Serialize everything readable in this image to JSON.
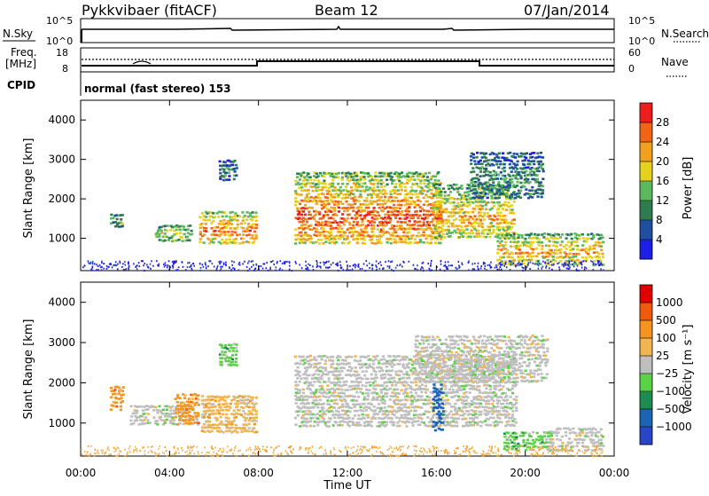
{
  "header": {
    "station": "Pykkvibaer (fitACF)",
    "beam": "Beam 12",
    "date": "07/Jan/2014"
  },
  "nsky_panel": {
    "left_label": "N.Sky",
    "right_label": "N.Search",
    "left_ticks": [
      "10^5",
      "10^0"
    ],
    "right_ticks": [
      "10^5",
      "10^0"
    ]
  },
  "freq_panel": {
    "left_label_line1": "Freq.",
    "left_label_line2": "[MHz]",
    "right_label": "Nave",
    "left_ticks": [
      "18",
      "8"
    ],
    "right_ticks": [
      "60",
      "0"
    ],
    "cpid_label": "CPID",
    "cpid_text": "normal (fast stereo) 153"
  },
  "colors": {
    "power": [
      "#1e1ee6",
      "#1f4f9e",
      "#2e7d4f",
      "#5cb85c",
      "#e6d21e",
      "#f0a01e",
      "#f06414",
      "#ee1e1e"
    ],
    "velocity": [
      "#e00000",
      "#f05a0a",
      "#f5941e",
      "#f0b450",
      "#bebebe",
      "#5ad246",
      "#1e8c50",
      "#1e64b4",
      "#2846c8"
    ]
  },
  "chart_data": [
    {
      "type": "heatmap",
      "name": "power",
      "xlabel": "",
      "ylabel": "Slant Range [km]",
      "x_ticks": [
        "00:00",
        "04:00",
        "08:00",
        "12:00",
        "16:00",
        "20:00",
        "00:00"
      ],
      "x_range_hours": [
        0,
        24
      ],
      "y_ticks": [
        1000,
        2000,
        3000,
        4000
      ],
      "ylim": [
        180,
        4500
      ],
      "colorbar_label": "Power [dB]",
      "colorbar_ticks": [
        4,
        8,
        12,
        16,
        20,
        24,
        28
      ],
      "colorbar_range": [
        0,
        32
      ],
      "regions": [
        {
          "t0": 1.3,
          "t1": 1.9,
          "r0": 1250,
          "r1": 1650,
          "level": 0.4
        },
        {
          "t0": 3.3,
          "t1": 5.0,
          "r0": 900,
          "r1": 1350,
          "level": 0.55
        },
        {
          "t0": 5.3,
          "t1": 7.9,
          "r0": 850,
          "r1": 1700,
          "level": 0.8
        },
        {
          "t0": 6.2,
          "t1": 7.0,
          "r0": 2450,
          "r1": 3000,
          "level": 0.3
        },
        {
          "t0": 9.6,
          "t1": 16.2,
          "r0": 850,
          "r1": 2700,
          "level": 0.85
        },
        {
          "t0": 15.8,
          "t1": 19.5,
          "r0": 1000,
          "r1": 2400,
          "level": 0.7
        },
        {
          "t0": 17.5,
          "t1": 20.8,
          "r0": 2000,
          "r1": 3200,
          "level": 0.35
        },
        {
          "t0": 18.7,
          "t1": 23.5,
          "r0": 300,
          "r1": 1150,
          "level": 0.7
        }
      ]
    },
    {
      "type": "heatmap",
      "name": "velocity",
      "xlabel": "Time UT",
      "ylabel": "Slant Range [km]",
      "x_ticks": [
        "00:00",
        "04:00",
        "08:00",
        "12:00",
        "16:00",
        "20:00",
        "00:00"
      ],
      "x_range_hours": [
        0,
        24
      ],
      "y_ticks": [
        1000,
        2000,
        3000,
        4000
      ],
      "ylim": [
        180,
        4500
      ],
      "colorbar_label": "Velocity [m s⁻¹]",
      "colorbar_ticks": [
        "1000",
        "500",
        "100",
        "25",
        "−25",
        "−100",
        "−500",
        "−1000"
      ],
      "regions": [
        {
          "t0": 1.3,
          "t1": 1.9,
          "r0": 1300,
          "r1": 1950,
          "class": 2
        },
        {
          "t0": 2.2,
          "t1": 5.3,
          "r0": 950,
          "r1": 1450,
          "class": 4
        },
        {
          "t0": 4.2,
          "t1": 5.3,
          "r0": 950,
          "r1": 1750,
          "class": 2
        },
        {
          "t0": 5.4,
          "t1": 7.9,
          "r0": 750,
          "r1": 1700,
          "class": 3
        },
        {
          "t0": 6.2,
          "t1": 7.0,
          "r0": 2400,
          "r1": 3000,
          "class": 5
        },
        {
          "t0": 9.6,
          "t1": 19.6,
          "r0": 900,
          "r1": 2700,
          "class": 4
        },
        {
          "t0": 15.0,
          "t1": 21.0,
          "r0": 2000,
          "r1": 3200,
          "class": 4
        },
        {
          "t0": 15.8,
          "t1": 16.3,
          "r0": 800,
          "r1": 2000,
          "class": 7
        },
        {
          "t0": 19.0,
          "t1": 21.2,
          "r0": 300,
          "r1": 800,
          "class": 5
        },
        {
          "t0": 21.0,
          "t1": 23.5,
          "r0": 300,
          "r1": 900,
          "class": 4
        }
      ]
    }
  ]
}
